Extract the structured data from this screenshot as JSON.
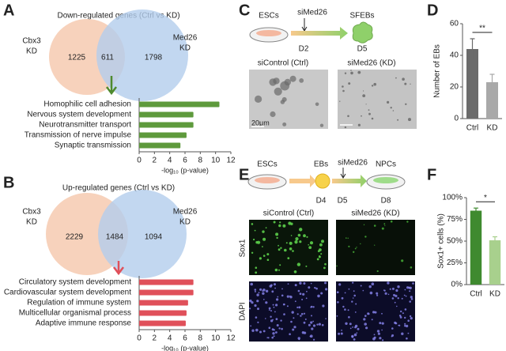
{
  "panels": {
    "A": {
      "letter": "A",
      "title": "Down-regulated genes (Ctrl vs KD)",
      "venn": {
        "left_label": [
          "Cbx3",
          "KD"
        ],
        "right_label": [
          "Med26",
          "KD"
        ],
        "left_only": 1225,
        "overlap": 611,
        "right_only": 1798
      }
    },
    "B": {
      "letter": "B",
      "title": "Up-regulated genes (Ctrl vs KD)",
      "venn": {
        "left_label": [
          "Cbx3",
          "KD"
        ],
        "right_label": [
          "Med26",
          "KD"
        ],
        "left_only": 2229,
        "overlap": 1484,
        "right_only": 1094
      }
    },
    "C": {
      "letter": "C",
      "start": "ESCs",
      "treatment": "siMed26",
      "treatment_day": "D2",
      "end": "SFEBs",
      "end_day": "D5",
      "images": [
        "siControl (Ctrl)",
        "siMed26 (KD)"
      ],
      "scale_bar": "20μm"
    },
    "E": {
      "letter": "E",
      "start": "ESCs",
      "middle": "EBs",
      "middle_day": "D4",
      "treatment": "siMed26",
      "treatment_day": "D5",
      "end": "NPCs",
      "end_day": "D8",
      "images": [
        "siControl (Ctrl)",
        "siMed26 (KD)"
      ],
      "rows": [
        "Sox1",
        "DAPI"
      ]
    }
  },
  "chart_data": [
    {
      "type": "barh",
      "categories": [
        "Homophilic cell adhesion",
        "Nervous system development",
        "Neurotransmitter transport",
        "Transmission of nerve impulse",
        "Synaptic transmission"
      ],
      "values": [
        10.5,
        7.1,
        7.1,
        6.2,
        5.4
      ],
      "color": "#5e9a3c",
      "xlim": [
        0,
        12
      ],
      "xticks": [
        0,
        2,
        4,
        6,
        8,
        10,
        12
      ],
      "xlabel": "-log₁₀ (p-value)"
    },
    {
      "type": "barh",
      "categories": [
        "Circulatory system development",
        "Cardiovascular system development",
        "Regulation of immune system",
        "Multicellular organismal process",
        "Adaptive immune response"
      ],
      "values": [
        7.1,
        7.1,
        6.4,
        6.2,
        6.1
      ],
      "color": "#e0505a",
      "xlim": [
        0,
        12
      ],
      "xticks": [
        0,
        2,
        4,
        6,
        8,
        10,
        12
      ],
      "xlabel": "-log₁₀ (p-value)"
    },
    {
      "type": "bar",
      "panel": "D",
      "categories": [
        "Ctrl",
        "KD"
      ],
      "values": [
        44,
        23
      ],
      "errors": [
        6.5,
        5
      ],
      "colors": [
        "#6b6b6b",
        "#a9a9a9"
      ],
      "ylabel": "Number of EBs",
      "ylim": [
        0,
        60
      ],
      "yticks": [
        0,
        20,
        40,
        60
      ],
      "significance": "**"
    },
    {
      "type": "bar",
      "panel": "F",
      "categories": [
        "Ctrl",
        "KD"
      ],
      "values": [
        85,
        51
      ],
      "errors": [
        3,
        4
      ],
      "colors": [
        "#3f8a2f",
        "#a8d08d"
      ],
      "ylabel": "Sox1+ cells (%)",
      "ylim": [
        0,
        100
      ],
      "yticks": [
        {
          "value": 0,
          "label": "0%"
        },
        {
          "value": 25,
          "label": "25%"
        },
        {
          "value": 50,
          "label": "50%"
        },
        {
          "value": 75,
          "label": "75%"
        },
        {
          "value": 100,
          "label": "100%"
        }
      ],
      "significance": "*"
    }
  ]
}
